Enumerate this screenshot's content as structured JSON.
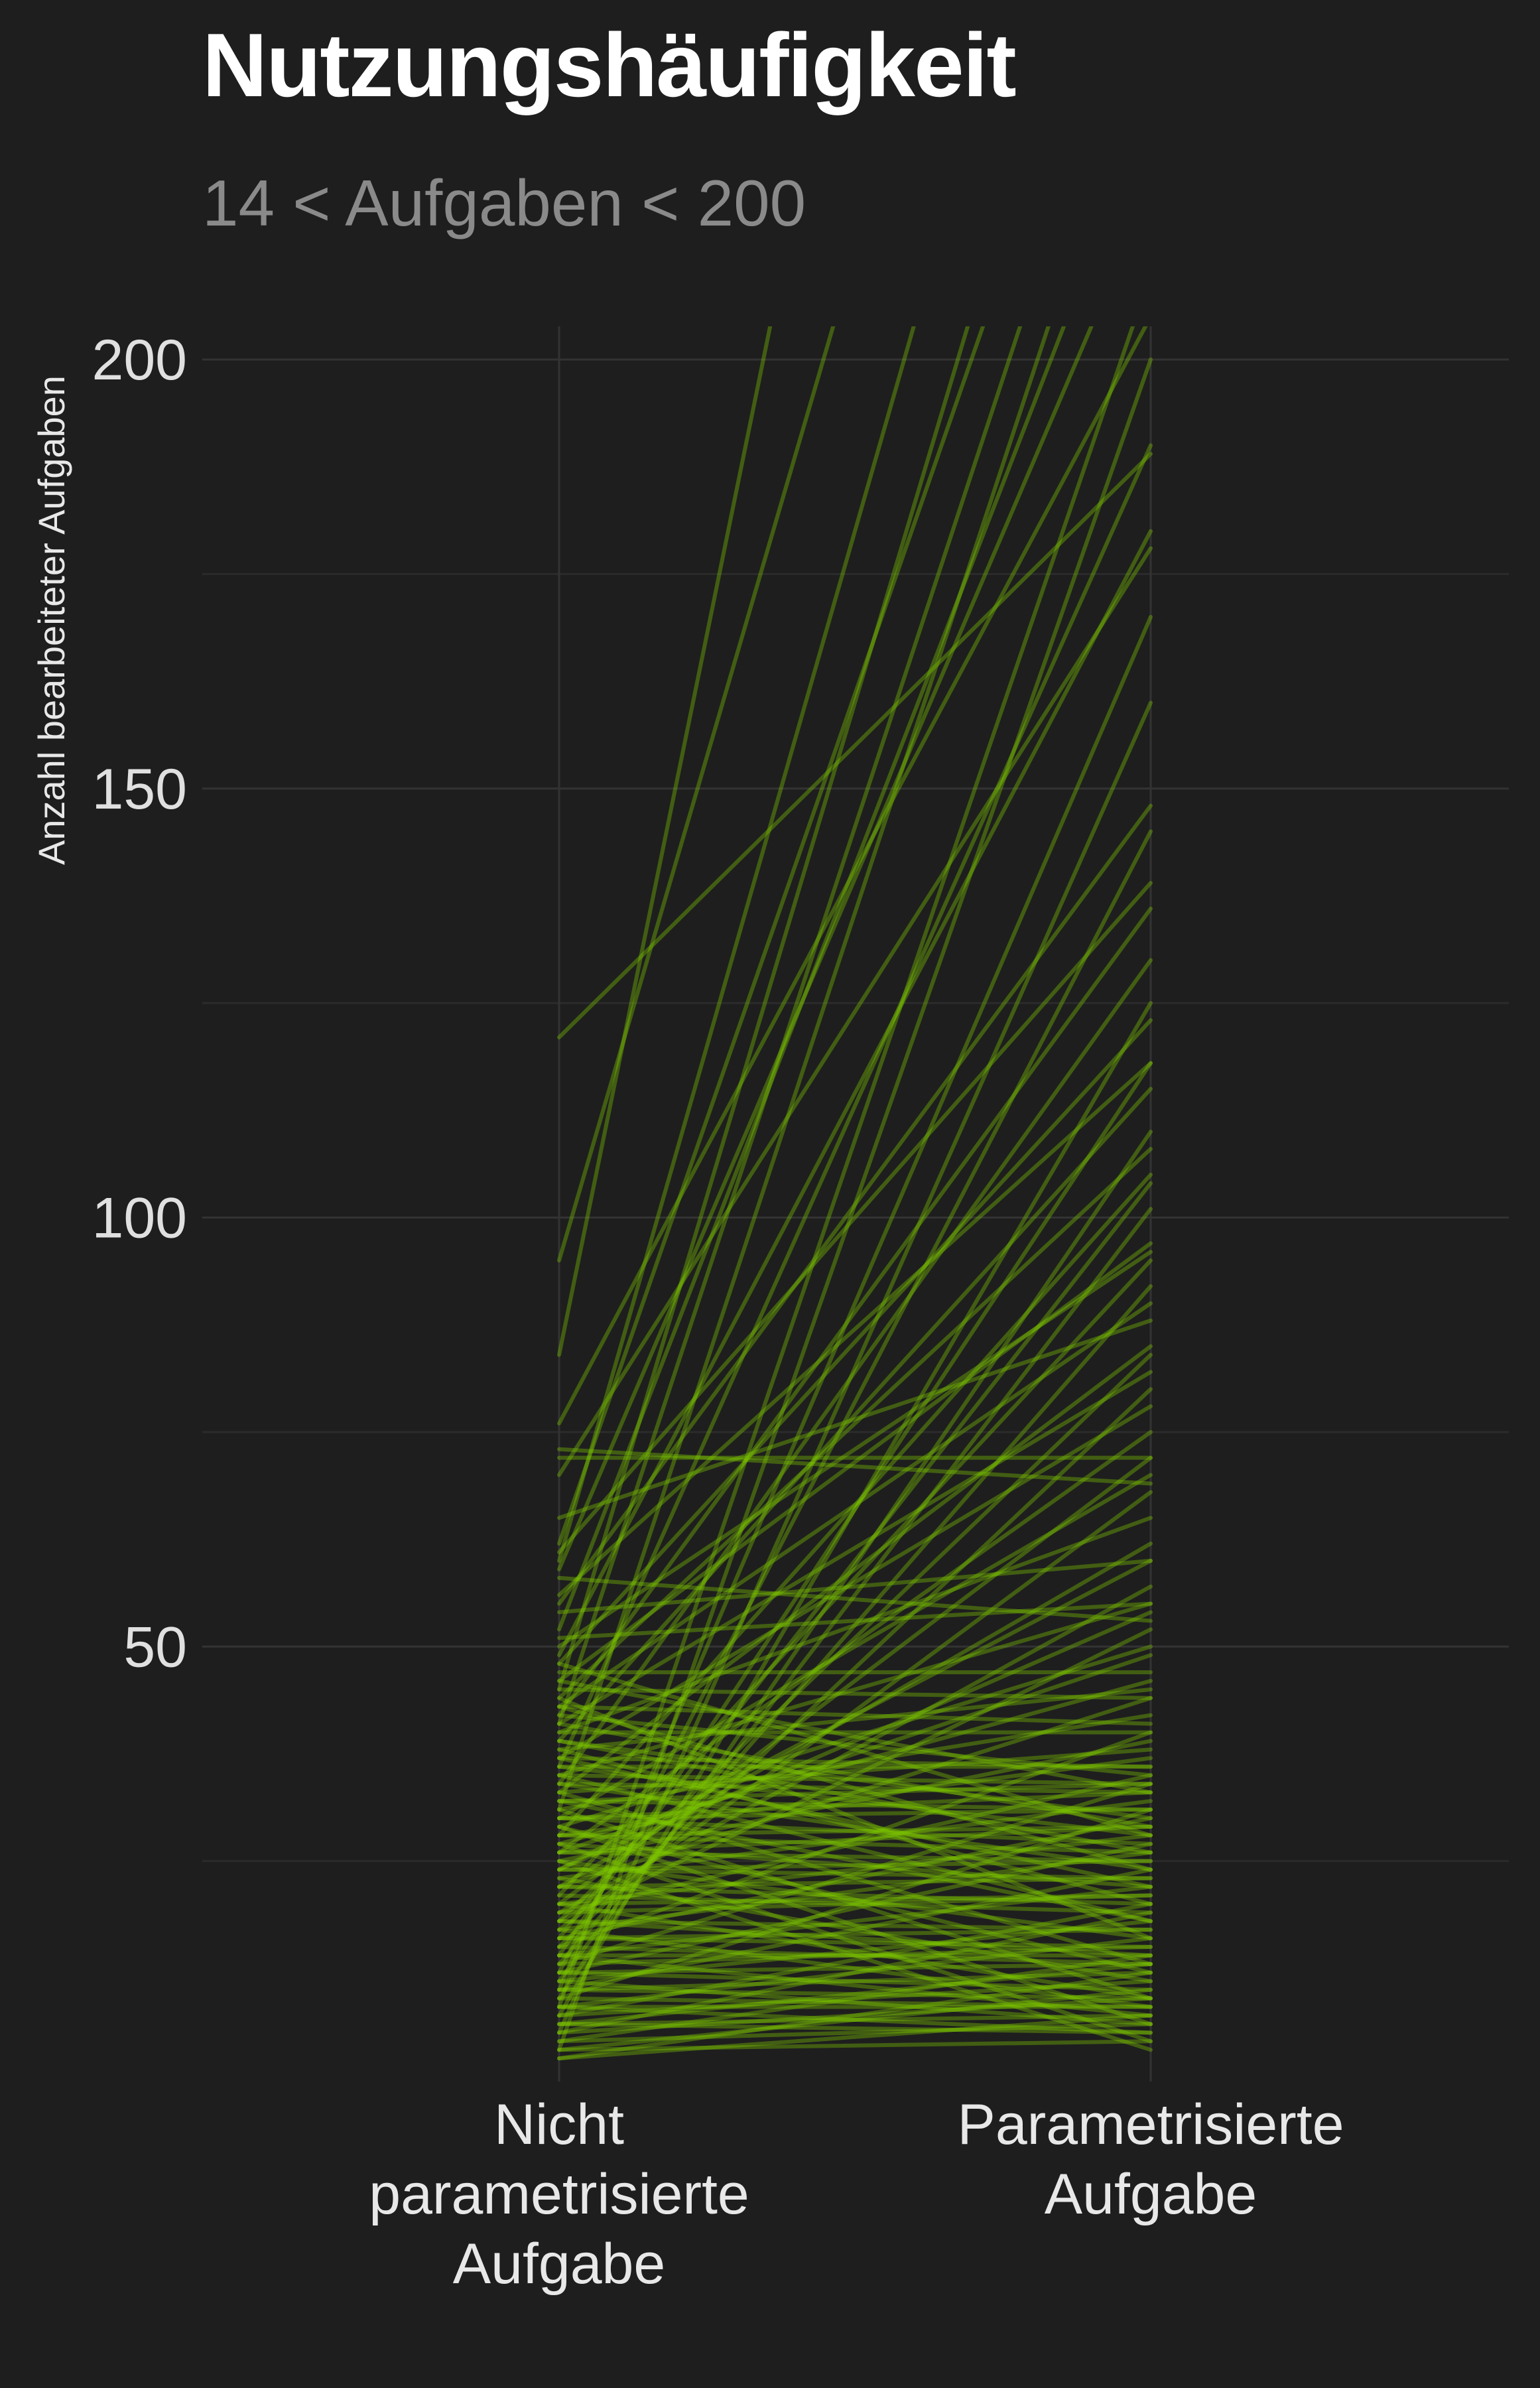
{
  "chart_data": {
    "type": "line",
    "title": "Nutzungshäufigkeit",
    "subtitle": "14 < Aufgaben < 200",
    "xlabel": "",
    "ylabel": "Anzahl bearbeiteter Aufgaben",
    "categories": [
      "Nicht\nparametrisierte\nAufgabe",
      "Parametrisierte\nAufgabe"
    ],
    "ylim": [
      0,
      210
    ],
    "yticks": [
      50,
      100,
      150,
      200
    ],
    "grid": true,
    "legend": "none",
    "colors": {
      "line": "#7fc800",
      "background": "#1e1e1e",
      "grid": "#333333",
      "axis_text": "#e0e0e0",
      "subtitle": "#8a8a8a"
    },
    "series": [
      {
        "values": [
          121,
          189
        ]
      },
      {
        "values": [
          95,
          330
        ]
      },
      {
        "values": [
          84,
          420
        ]
      },
      {
        "values": [
          76,
          205
        ]
      },
      {
        "values": [
          73,
          69
        ]
      },
      {
        "values": [
          72,
          72
        ]
      },
      {
        "values": [
          70,
          178
        ]
      },
      {
        "values": [
          65,
          88
        ]
      },
      {
        "values": [
          62,
          260
        ]
      },
      {
        "values": [
          61,
          139
        ]
      },
      {
        "values": [
          60,
          300
        ]
      },
      {
        "values": [
          59,
          220
        ]
      },
      {
        "values": [
          58,
          53
        ]
      },
      {
        "values": [
          56,
          118
        ]
      },
      {
        "values": [
          55,
          148
        ]
      },
      {
        "values": [
          54,
          60
        ]
      },
      {
        "values": [
          52,
          230
        ]
      },
      {
        "values": [
          51,
          55
        ]
      },
      {
        "values": [
          50,
          96
        ]
      },
      {
        "values": [
          49,
          180
        ]
      },
      {
        "values": [
          48,
          123
        ]
      },
      {
        "values": [
          47,
          47
        ]
      },
      {
        "values": [
          46,
          97
        ]
      },
      {
        "values": [
          45,
          275
        ]
      },
      {
        "values": [
          45,
          44
        ]
      },
      {
        "values": [
          44,
          108
        ]
      },
      {
        "values": [
          43,
          90
        ]
      },
      {
        "values": [
          43,
          41
        ]
      },
      {
        "values": [
          42,
          136
        ]
      },
      {
        "values": [
          42,
          35
        ]
      },
      {
        "values": [
          41,
          250
        ]
      },
      {
        "values": [
          41,
          82
        ]
      },
      {
        "values": [
          40,
          40
        ]
      },
      {
        "values": [
          40,
          65
        ]
      },
      {
        "values": [
          39,
          30
        ]
      },
      {
        "values": [
          39,
          115
        ]
      },
      {
        "values": [
          38,
          45
        ]
      },
      {
        "values": [
          38,
          20
        ]
      },
      {
        "values": [
          37,
          78
        ]
      },
      {
        "values": [
          37,
          36
        ]
      },
      {
        "values": [
          36,
          190
        ]
      },
      {
        "values": [
          36,
          28
        ]
      },
      {
        "values": [
          35,
          55
        ]
      },
      {
        "values": [
          35,
          34
        ]
      },
      {
        "values": [
          34,
          130
        ]
      },
      {
        "values": [
          34,
          24
        ]
      },
      {
        "values": [
          33,
          38
        ]
      },
      {
        "values": [
          33,
          85
        ]
      },
      {
        "values": [
          32,
          31
        ]
      },
      {
        "values": [
          32,
          18
        ]
      },
      {
        "values": [
          31,
          240
        ]
      },
      {
        "values": [
          31,
          42
        ]
      },
      {
        "values": [
          30,
          27
        ]
      },
      {
        "values": [
          30,
          70
        ]
      },
      {
        "values": [
          30,
          33
        ]
      },
      {
        "values": [
          29,
          12
        ]
      },
      {
        "values": [
          29,
          50
        ]
      },
      {
        "values": [
          28,
          26
        ]
      },
      {
        "values": [
          28,
          105
        ]
      },
      {
        "values": [
          28,
          37
        ]
      },
      {
        "values": [
          27,
          22
        ]
      },
      {
        "values": [
          27,
          46
        ]
      },
      {
        "values": [
          26,
          29
        ]
      },
      {
        "values": [
          26,
          75
        ]
      },
      {
        "values": [
          25,
          16
        ]
      },
      {
        "values": [
          25,
          39
        ]
      },
      {
        "values": [
          24,
          25
        ]
      },
      {
        "values": [
          24,
          60
        ]
      },
      {
        "values": [
          23,
          32
        ]
      },
      {
        "values": [
          23,
          11
        ]
      },
      {
        "values": [
          22,
          23
        ]
      },
      {
        "values": [
          22,
          44
        ]
      },
      {
        "values": [
          21,
          19
        ]
      },
      {
        "values": [
          21,
          95
        ]
      },
      {
        "values": [
          20,
          28
        ]
      },
      {
        "values": [
          20,
          9
        ]
      },
      {
        "values": [
          19,
          35
        ]
      },
      {
        "values": [
          19,
          21
        ]
      },
      {
        "values": [
          18,
          14
        ]
      },
      {
        "values": [
          18,
          52
        ]
      },
      {
        "values": [
          17,
          26
        ]
      },
      {
        "values": [
          17,
          8
        ]
      },
      {
        "values": [
          16,
          30
        ]
      },
      {
        "values": [
          16,
          17
        ]
      },
      {
        "values": [
          15,
          40
        ]
      },
      {
        "values": [
          15,
          13
        ]
      },
      {
        "values": [
          14,
          22
        ]
      },
      {
        "values": [
          14,
          7
        ]
      },
      {
        "values": [
          13,
          34
        ]
      },
      {
        "values": [
          13,
          15
        ]
      },
      {
        "values": [
          12,
          10
        ]
      },
      {
        "values": [
          12,
          27
        ]
      },
      {
        "values": [
          11,
          18
        ]
      },
      {
        "values": [
          11,
          6
        ]
      },
      {
        "values": [
          10,
          24
        ]
      },
      {
        "values": [
          10,
          12
        ]
      },
      {
        "values": [
          9,
          31
        ]
      },
      {
        "values": [
          9,
          8
        ]
      },
      {
        "values": [
          8,
          16
        ]
      },
      {
        "values": [
          8,
          5
        ]
      },
      {
        "values": [
          7,
          20
        ]
      },
      {
        "values": [
          7,
          11
        ]
      },
      {
        "values": [
          6,
          13
        ]
      },
      {
        "values": [
          6,
          5
        ]
      },
      {
        "values": [
          5,
          9
        ]
      },
      {
        "values": [
          5,
          19
        ]
      },
      {
        "values": [
          4,
          6
        ]
      },
      {
        "values": [
          4,
          14
        ]
      },
      {
        "values": [
          3,
          10
        ]
      },
      {
        "values": [
          3,
          4
        ]
      },
      {
        "values": [
          2,
          7
        ]
      },
      {
        "values": [
          2,
          12
        ]
      },
      {
        "values": [
          36,
          36
        ]
      },
      {
        "values": [
          34,
          33
        ]
      },
      {
        "values": [
          32,
          34
        ]
      },
      {
        "values": [
          30,
          31
        ]
      },
      {
        "values": [
          28,
          29
        ]
      },
      {
        "values": [
          26,
          25
        ]
      },
      {
        "values": [
          24,
          23
        ]
      },
      {
        "values": [
          22,
          20
        ]
      },
      {
        "values": [
          20,
          21
        ]
      },
      {
        "values": [
          18,
          17
        ]
      },
      {
        "values": [
          16,
          15
        ]
      },
      {
        "values": [
          14,
          14
        ]
      },
      {
        "values": [
          12,
          13
        ]
      },
      {
        "values": [
          10,
          9
        ]
      },
      {
        "values": [
          8,
          8
        ]
      },
      {
        "values": [
          6,
          7
        ]
      },
      {
        "values": [
          39,
          26
        ]
      },
      {
        "values": [
          37,
          22
        ]
      },
      {
        "values": [
          35,
          18
        ]
      },
      {
        "values": [
          33,
          13
        ]
      },
      {
        "values": [
          31,
          9
        ]
      },
      {
        "values": [
          29,
          6
        ]
      },
      {
        "values": [
          27,
          4
        ]
      },
      {
        "values": [
          25,
          3
        ]
      },
      {
        "values": [
          41,
          29
        ]
      },
      {
        "values": [
          43,
          24
        ]
      },
      {
        "values": [
          44,
          16
        ]
      },
      {
        "values": [
          46,
          33
        ]
      },
      {
        "values": [
          48,
          28
        ]
      },
      {
        "values": [
          19,
          57
        ]
      },
      {
        "values": [
          17,
          68
        ]
      },
      {
        "values": [
          15,
          80
        ]
      },
      {
        "values": [
          13,
          92
        ]
      },
      {
        "values": [
          11,
          101
        ]
      },
      {
        "values": [
          9,
          110
        ]
      },
      {
        "values": [
          7,
          125
        ]
      },
      {
        "values": [
          5,
          160
        ]
      },
      {
        "values": [
          3,
          200
        ]
      },
      {
        "values": [
          26,
          49
        ]
      },
      {
        "values": [
          24,
          54
        ]
      },
      {
        "values": [
          22,
          62
        ]
      },
      {
        "values": [
          20,
          72
        ]
      },
      {
        "values": [
          18,
          84
        ]
      },
      {
        "values": [
          16,
          104
        ]
      },
      {
        "values": [
          14,
          118
        ]
      },
      {
        "values": [
          12,
          145
        ]
      },
      {
        "values": [
          10,
          170
        ]
      },
      {
        "values": [
          8,
          210
        ]
      }
    ]
  }
}
